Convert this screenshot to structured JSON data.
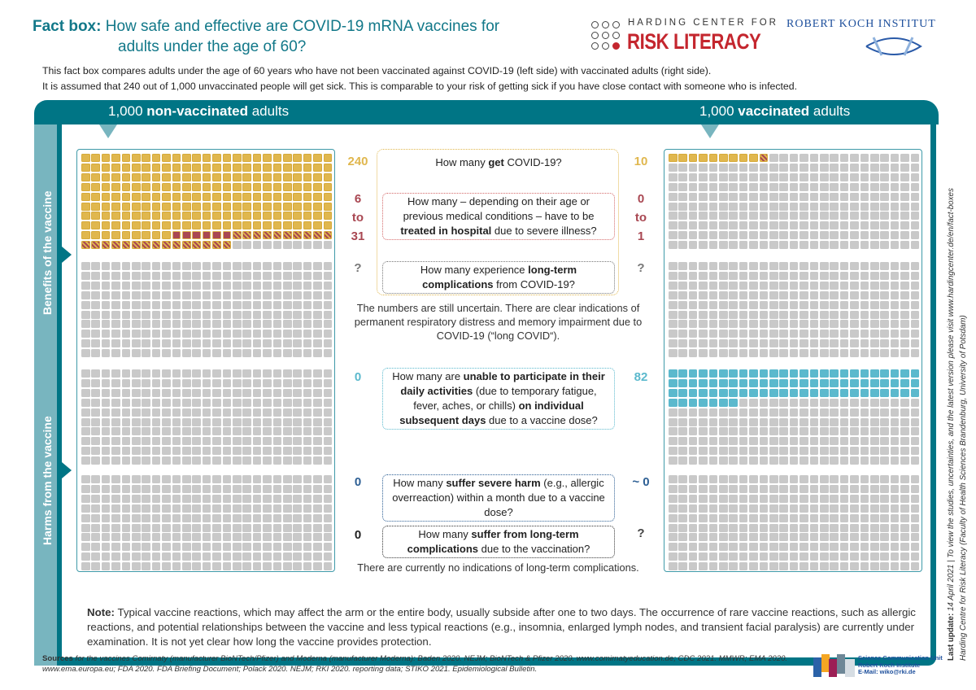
{
  "title": {
    "prefix": "Fact box:",
    "line1": "How safe and effective are COVID-19 mRNA vaccines for",
    "line2": "adults under the age of 60?"
  },
  "intro": {
    "line1": "This fact box compares adults under the age of 60 years who have not been vaccinated against COVID-19 (left side) with vaccinated adults (right side).",
    "line2": "It is assumed that 240 out of 1,000 unvaccinated people will get sick. This is comparable to your risk of getting sick if you have close contact with someone who is infected."
  },
  "logos": {
    "harding_line1": "HARDING CENTER FOR",
    "harding_line2": "RISK LITERACY",
    "rki": "ROBERT KOCH INSTITUT",
    "scu": [
      "Science Communication Unit",
      "Robert Koch Institute",
      "E-Mail: wiko@rki.de"
    ]
  },
  "headers": {
    "left_count": "1,000",
    "left_bold": "non-vaccinated",
    "left_rest": "adults",
    "right_count": "1,000",
    "right_bold": "vaccinated",
    "right_rest": "adults"
  },
  "sections": {
    "benefits": "Benefits of the vaccine",
    "harms": "Harms from the vaccine"
  },
  "colors": {
    "teal": "#007585",
    "light_teal": "#78b5bf",
    "infected": "#e0b74e",
    "hospital": "#a94752",
    "empty": "#c9c9c9",
    "daily_activities": "#5bb9cd"
  },
  "grids": {
    "columns": 25,
    "rows_per_block": 10,
    "left": [
      [
        [
          "inf",
          209
        ],
        [
          "hosp",
          6
        ],
        [
          "hatch",
          25
        ],
        [
          "empty",
          10
        ]
      ],
      [
        [
          "empty",
          250
        ]
      ],
      [
        [
          "empty",
          250
        ]
      ],
      [
        [
          "empty",
          250
        ]
      ]
    ],
    "right": [
      [
        [
          "inf",
          9
        ],
        [
          "hatch",
          1
        ],
        [
          "empty",
          240
        ]
      ],
      [
        [
          "empty",
          250
        ]
      ],
      [
        [
          "blue",
          82
        ],
        [
          "empty",
          168
        ]
      ],
      [
        [
          "empty",
          250
        ]
      ]
    ]
  },
  "questions": [
    {
      "left": "240",
      "right": "10",
      "pre": "How many ",
      "bold": "get",
      "post": " COVID-19?"
    },
    {
      "left": [
        "6",
        "to",
        "31"
      ],
      "right": [
        "0",
        "to",
        "1"
      ],
      "pre": "How many – depending on their age or previous medical conditions – have to be ",
      "bold": "treated in hospital",
      "post": " due to severe illness?"
    },
    {
      "left": "?",
      "right": "?",
      "pre": "How many experience ",
      "bold": "long-term complications",
      "post": " from COVID-19?"
    },
    {
      "left": "0",
      "right": "82",
      "pre": "How many are ",
      "bold": "unable to participate in their daily activities",
      "post": " (due to temporary fatigue, fever, aches, or chills) ",
      "bold2": "on individual subsequent days",
      "post2": " due to a vaccine dose?"
    },
    {
      "left": "0",
      "right": "~ 0",
      "pre": "How many ",
      "bold": "suffer severe harm",
      "post": " (e.g., allergic overreaction) within a month due to a vaccine dose?"
    },
    {
      "left": "0",
      "right": "?",
      "pre": "How many ",
      "bold": "suffer from long-term complications",
      "post": " due to the vaccination?"
    }
  ],
  "notes": {
    "long_covid": "The numbers are still uncertain. There are clear indications of permanent respiratory distress and memory impairment due to COVID-19 (“long COVID“).",
    "no_long_term": "There are currently no indications of long-term complications.",
    "note_label": "Note:",
    "note_text": " Typical vaccine reactions, which may affect the arm or the entire body, usually subside after one to two days. The occurrence of rare vaccine reactions, such as allergic reactions, and potential relationships between the vaccine and less typical reactions (e.g., insomnia, enlarged lymph nodes, and transient facial paralysis) are currently under examination. It is not yet clear how long the vaccine provides protection."
  },
  "sources": {
    "label": "Sources",
    "text": " for the vaccines Comirnaty (manufacturer BioNTech/Pfizer) and Moderna (manufacturer Moderna): Baden 2020. NEJM; BioNTech & Pfizer 2020. www.comirnatyeducation.de; CDC 2021. MMWR; EMA 2020. www.ema.europa.eu; FDA 2020. FDA Briefing Document; Polack 2020. NEJM; RKI 2020. reporting data; STIKO 2021. Epidemiological Bulletin."
  },
  "footer": {
    "update_label": "Last update:",
    "update_text": " 14 April 2021 | To view the studies, uncertainties, and the latest version please visit www.hardingcenter.de/en/fact-boxes",
    "credit": "Harding Centre for Risk Literacy (Faculty of Health Sciences Brandenburg, University of Potsdam)"
  }
}
